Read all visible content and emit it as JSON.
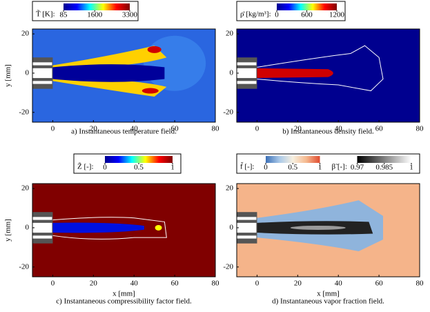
{
  "chart_data": [
    {
      "type": "field",
      "caption": "a) Instantaneous temperature field.",
      "ylabel": "y [mm]",
      "xlim": [
        -10,
        80
      ],
      "ylim": [
        -25,
        22.5
      ],
      "xticks": [
        0,
        20,
        40,
        60,
        80
      ],
      "yticks": [
        -20,
        0,
        20
      ],
      "colorbars": [
        {
          "label": "T̃ [K]:",
          "clim": [
            85,
            3300
          ],
          "ticks": [
            85,
            1600,
            3300
          ],
          "colormap": [
            "#00008f",
            "#0000ff",
            "#00ffff",
            "#ffff00",
            "#ff0000",
            "#800000"
          ]
        }
      ]
    },
    {
      "type": "field",
      "caption": "b) Instantaneous density field.",
      "xlim": [
        -10,
        80
      ],
      "ylim": [
        -25,
        22.5
      ],
      "xticks": [
        0,
        20,
        40,
        60,
        80
      ],
      "yticks": [
        -20,
        0,
        20
      ],
      "colorbars": [
        {
          "label": "ρ̄ [kg/m³]:",
          "clim": [
            0,
            1200
          ],
          "ticks": [
            0,
            600,
            1200
          ],
          "colormap": [
            "#00008f",
            "#0000ff",
            "#00ffff",
            "#ffff00",
            "#ff0000",
            "#800000"
          ]
        }
      ]
    },
    {
      "type": "field",
      "caption": "c) Instantaneous compressibility factor field.",
      "xlabel": "x [mm]",
      "ylabel": "y [mm]",
      "xlim": [
        -10,
        80
      ],
      "ylim": [
        -25,
        22.5
      ],
      "xticks": [
        0,
        20,
        40,
        60,
        80
      ],
      "yticks": [
        -20,
        0,
        20
      ],
      "colorbars": [
        {
          "label": "Z̃ [-]:",
          "clim": [
            0,
            1
          ],
          "ticks": [
            0,
            0.5,
            1
          ],
          "colormap": [
            "#00008f",
            "#0000ff",
            "#00ffff",
            "#ffff00",
            "#ff0000",
            "#800000"
          ]
        }
      ]
    },
    {
      "type": "field",
      "caption": "d) Instantaneous vapor fraction field.",
      "xlabel": "x [mm]",
      "xlim": [
        -10,
        80
      ],
      "ylim": [
        -25,
        22.5
      ],
      "xticks": [
        0,
        20,
        40,
        60,
        80
      ],
      "yticks": [
        -20,
        0,
        20
      ],
      "colorbars": [
        {
          "label": "f̃ [-]:",
          "clim": [
            0,
            1
          ],
          "ticks": [
            0,
            0.5,
            1
          ],
          "colormap": [
            "#3b6fb6",
            "#a9c8e8",
            "#f7f0e0",
            "#f5b98f",
            "#e04b2f"
          ]
        },
        {
          "label": "β̃ [-]:",
          "clim": [
            0.97,
            1
          ],
          "ticks": [
            0.97,
            0.985,
            1
          ],
          "colormap": [
            "#000000",
            "#808080",
            "#ffffff"
          ]
        }
      ]
    }
  ]
}
